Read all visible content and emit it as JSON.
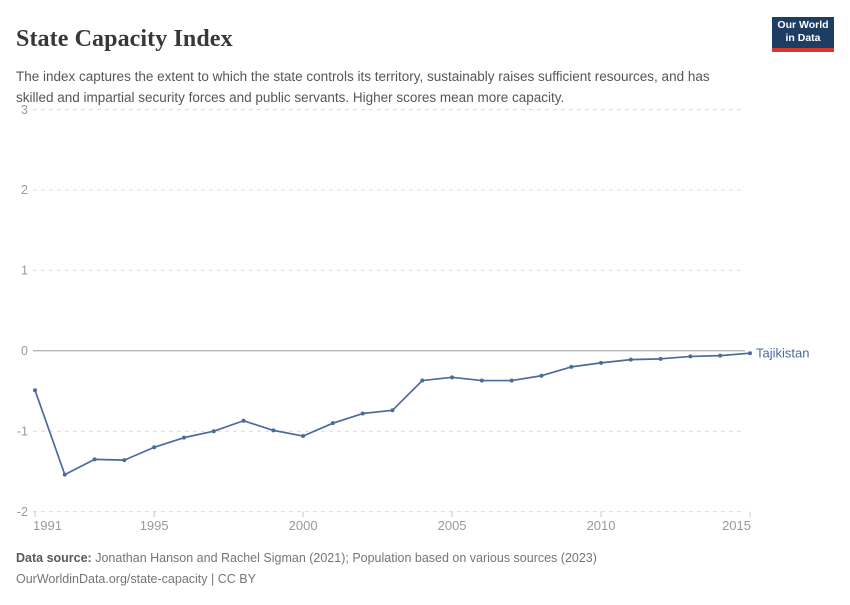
{
  "header": {
    "title": "State Capacity Index"
  },
  "logo": {
    "line1": "Our World",
    "line2": "in Data",
    "bg_color": "#1d3d63",
    "bar_color": "#d9362e"
  },
  "subtitle": "The index captures the extent to which the state controls its territory, sustainably raises sufficient resources, and has skilled and impartial security forces and public servants. Higher scores mean more capacity.",
  "footer": {
    "data_source_label": "Data source:",
    "data_source_text": " Jonathan Hanson and Rachel Sigman (2021); Population based on various sources (2023)",
    "link_line": "OurWorldinData.org/state-capacity | CC BY"
  },
  "chart_data": {
    "type": "line",
    "title": "State Capacity Index",
    "xlabel": "",
    "ylabel": "",
    "x": [
      1991,
      1992,
      1993,
      1994,
      1995,
      1996,
      1997,
      1998,
      1999,
      2000,
      2001,
      2002,
      2003,
      2004,
      2005,
      2006,
      2007,
      2008,
      2009,
      2010,
      2011,
      2012,
      2013,
      2014,
      2015
    ],
    "series": [
      {
        "name": "Tajikistan",
        "color": "#4C6A9C",
        "values": [
          -0.49,
          -1.54,
          -1.35,
          -1.36,
          -1.2,
          -1.08,
          -1.0,
          -0.87,
          -0.99,
          -1.06,
          -0.9,
          -0.78,
          -0.74,
          -0.37,
          -0.33,
          -0.37,
          -0.37,
          -0.31,
          -0.2,
          -0.15,
          -0.11,
          -0.1,
          -0.07,
          -0.06,
          -0.03
        ]
      }
    ],
    "ylim": [
      -2,
      3
    ],
    "yticks": [
      3,
      2,
      1,
      0,
      -1,
      -2
    ],
    "xticks": [
      1991,
      1995,
      2000,
      2005,
      2010,
      2015
    ],
    "grid": "horizontal-dashed",
    "zero_line": true,
    "legend_position": "end-of-line-label",
    "colors": {
      "grid": "#dcdcdc",
      "zero_line": "#9e9e9e",
      "tick_label": "#9a9a9a",
      "axis_tick": "#c8c8c8"
    }
  }
}
